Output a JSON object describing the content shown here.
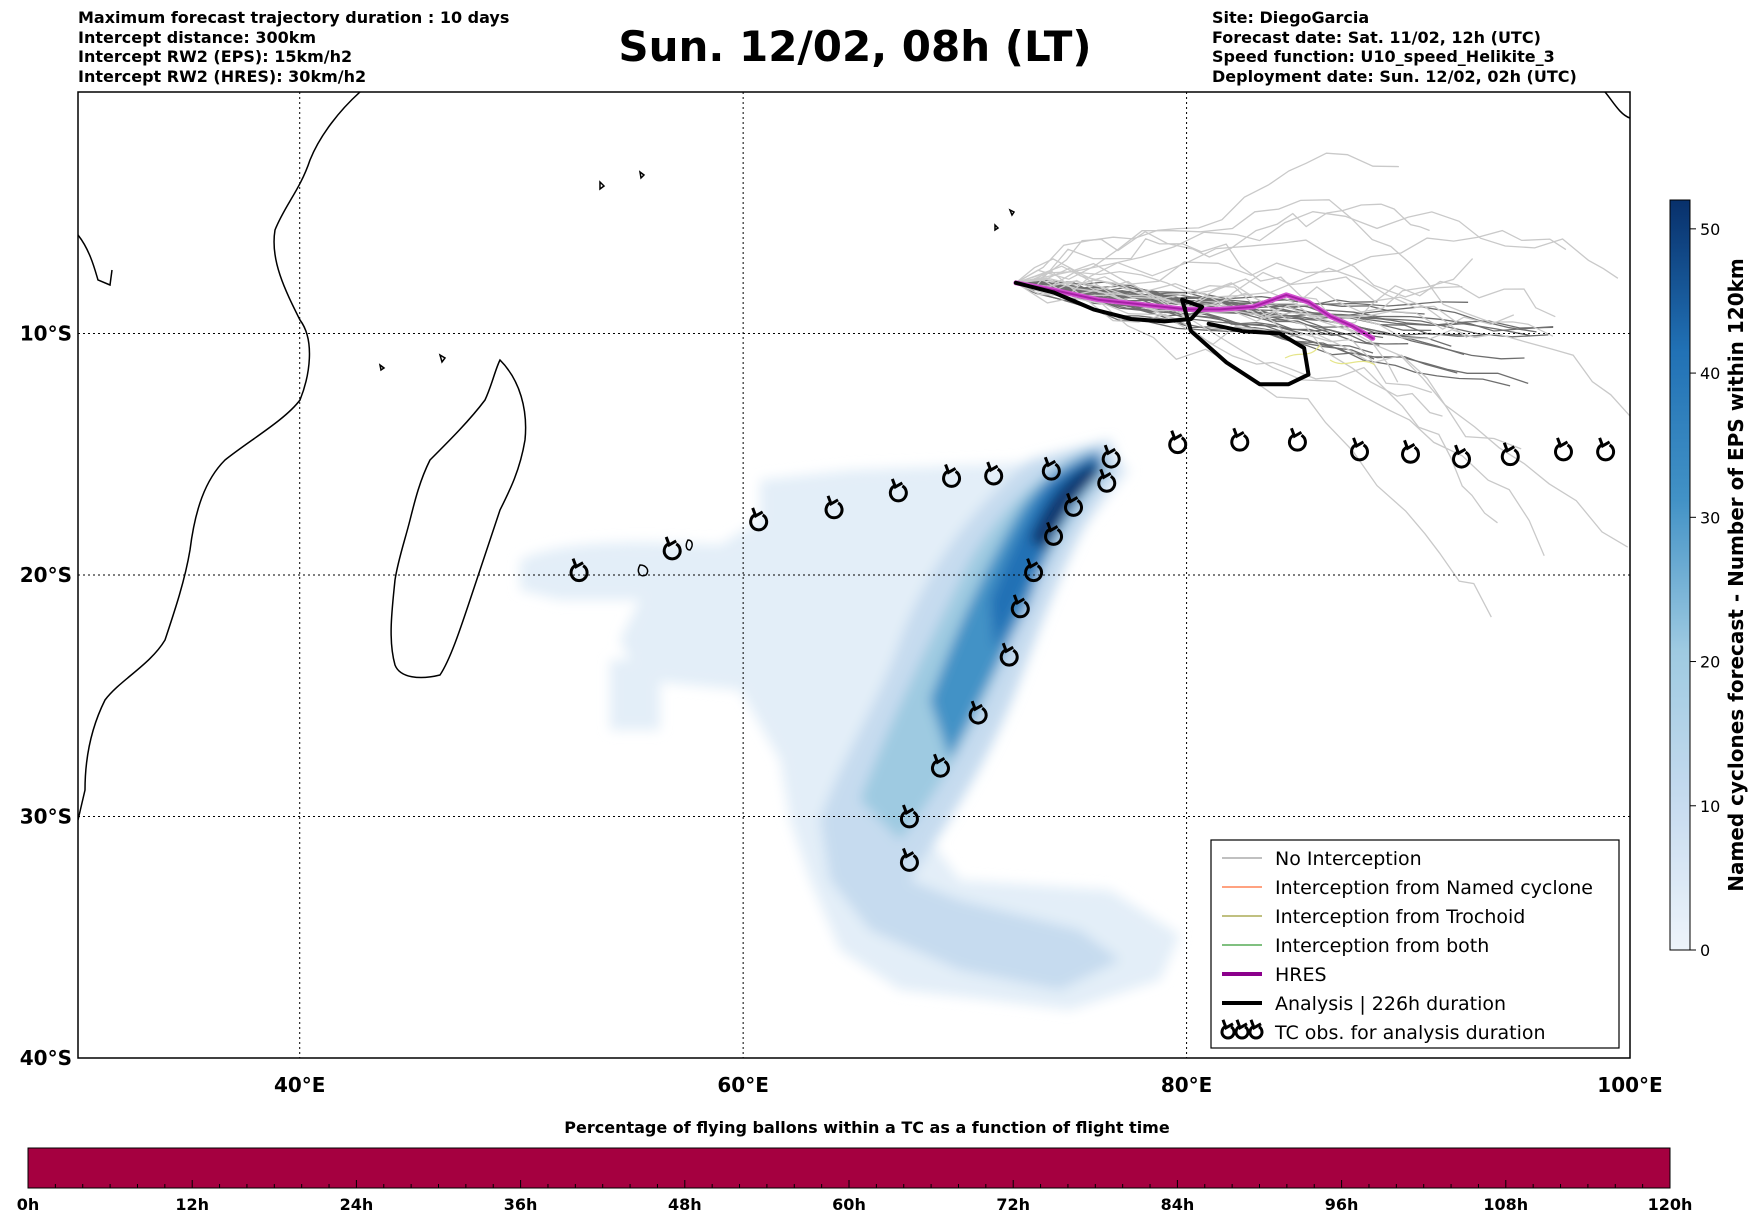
{
  "header": {
    "left_lines": [
      "Maximum forecast trajectory duration : 10 days",
      "Intercept distance: 300km",
      "Intercept RW2 (EPS):  15km/h2",
      "Intercept RW2 (HRES): 30km/h2"
    ],
    "title": "Sun. 12/02, 08h (LT)",
    "right_lines": [
      "Site: DiegoGarcia",
      "Forecast date: Sat. 11/02, 12h (UTC)",
      "Speed function: U10_speed_Helikite_3",
      "Deployment date: Sun. 12/02, 02h (UTC)"
    ]
  },
  "map": {
    "lon_range": [
      30,
      100
    ],
    "lat_range": [
      -40,
      0
    ],
    "lon_ticks": [
      {
        "value": 40,
        "label": "40°E"
      },
      {
        "value": 60,
        "label": "60°E"
      },
      {
        "value": 80,
        "label": "80°E"
      },
      {
        "value": 100,
        "label": "100°E"
      }
    ],
    "lat_ticks": [
      {
        "value": -10,
        "label": "10°S"
      },
      {
        "value": -20,
        "label": "20°S"
      },
      {
        "value": -30,
        "label": "30°S"
      },
      {
        "value": -40,
        "label": "40°S"
      }
    ],
    "grid": "dotted",
    "tc_observations": [
      [
        52.6,
        -19.9
      ],
      [
        56.8,
        -19.0
      ],
      [
        60.7,
        -17.8
      ],
      [
        64.1,
        -17.3
      ],
      [
        67.0,
        -16.6
      ],
      [
        69.4,
        -16.0
      ],
      [
        71.3,
        -15.9
      ],
      [
        73.9,
        -15.7
      ],
      [
        76.6,
        -15.2
      ],
      [
        79.6,
        -14.6
      ],
      [
        82.4,
        -14.5
      ],
      [
        85.0,
        -14.5
      ],
      [
        87.8,
        -14.9
      ],
      [
        90.1,
        -15.0
      ],
      [
        92.4,
        -15.2
      ],
      [
        94.6,
        -15.1
      ],
      [
        97.0,
        -14.9
      ],
      [
        98.9,
        -14.9
      ],
      [
        76.4,
        -16.2
      ],
      [
        74.9,
        -17.2
      ],
      [
        74.0,
        -18.4
      ],
      [
        73.1,
        -19.9
      ],
      [
        72.5,
        -21.4
      ],
      [
        72.0,
        -23.4
      ],
      [
        70.6,
        -25.8
      ],
      [
        68.9,
        -28.0
      ],
      [
        67.5,
        -30.1
      ],
      [
        67.5,
        -31.9
      ]
    ],
    "hres_track": [
      [
        72.3,
        -7.9
      ],
      [
        74.0,
        -8.2
      ],
      [
        76.0,
        -8.6
      ],
      [
        78.0,
        -8.8
      ],
      [
        80.0,
        -9.0
      ],
      [
        81.5,
        -9.0
      ],
      [
        83.0,
        -8.9
      ],
      [
        84.5,
        -8.4
      ],
      [
        85.5,
        -8.7
      ],
      [
        86.5,
        -9.3
      ],
      [
        87.5,
        -9.7
      ],
      [
        88.4,
        -10.2
      ]
    ],
    "analysis_track": [
      [
        72.3,
        -7.9
      ],
      [
        74.0,
        -8.3
      ],
      [
        75.8,
        -9.0
      ],
      [
        77.5,
        -9.4
      ],
      [
        79.0,
        -9.5
      ],
      [
        80.2,
        -9.4
      ],
      [
        80.7,
        -8.9
      ],
      [
        79.8,
        -8.6
      ],
      [
        80.2,
        -9.9
      ],
      [
        81.8,
        -11.2
      ],
      [
        83.3,
        -12.1
      ],
      [
        84.6,
        -12.1
      ],
      [
        85.5,
        -11.7
      ],
      [
        85.3,
        -10.6
      ],
      [
        84.2,
        -10.0
      ],
      [
        82.5,
        -9.9
      ],
      [
        81.0,
        -9.6
      ]
    ],
    "genesis_lon_lat": [
      72.3,
      -7.9
    ]
  },
  "legend": {
    "items": [
      {
        "label": "No Interception",
        "color": "#808080",
        "width": 1
      },
      {
        "label": "Interception from Named cyclone",
        "color": "#ff4500",
        "width": 1
      },
      {
        "label": "Interception from Trochoid",
        "color": "#808000",
        "width": 1
      },
      {
        "label": "Interception from both",
        "color": "#008000",
        "width": 1
      },
      {
        "label": "HRES",
        "color": "#8b008b",
        "width": 4
      },
      {
        "label": "Analysis | 226h duration",
        "color": "#000000",
        "width": 4
      }
    ],
    "tc_obs_label": "TC obs. for analysis duration"
  },
  "colorbar": {
    "label": "Named cyclones forecast - Number of EPS within 120km",
    "min": 0,
    "max": 52,
    "ticks": [
      0,
      10,
      20,
      30,
      40,
      50
    ],
    "color_low": "#eef4fb",
    "color_high": "#08306b"
  },
  "percentage_bar": {
    "title": "Percentage of flying ballons within a TC as a function of flight time",
    "ticks": [
      "0h",
      "12h",
      "24h",
      "36h",
      "48h",
      "60h",
      "72h",
      "84h",
      "96h",
      "108h",
      "120h"
    ],
    "color": "#a50040"
  }
}
